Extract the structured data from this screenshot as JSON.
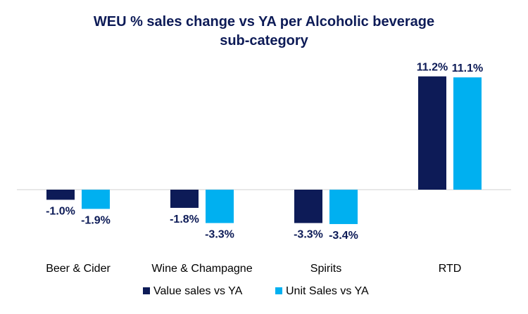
{
  "chart_data": {
    "type": "bar",
    "title_lines": [
      "WEU % sales change vs YA per Alcoholic beverage",
      "sub-category"
    ],
    "categories": [
      "Beer & Cider",
      "Wine & Champagne",
      "Spirits",
      "RTD"
    ],
    "series": [
      {
        "name": "Value sales vs YA",
        "values": [
          -1.0,
          -1.8,
          -3.3,
          11.2
        ],
        "labels": [
          "-1.0%",
          "-1.8%",
          "-3.3%",
          "11.2%"
        ],
        "color": "#0d1b57"
      },
      {
        "name": "Unit Sales vs YA",
        "values": [
          -1.9,
          -3.3,
          -3.4,
          11.1
        ],
        "labels": [
          "-1.9%",
          "-3.3%",
          "-3.4%",
          "11.1%"
        ],
        "color": "#00b0f0"
      }
    ],
    "ylim": [
      -4,
      12
    ],
    "grid": false,
    "legend": "bottom"
  }
}
